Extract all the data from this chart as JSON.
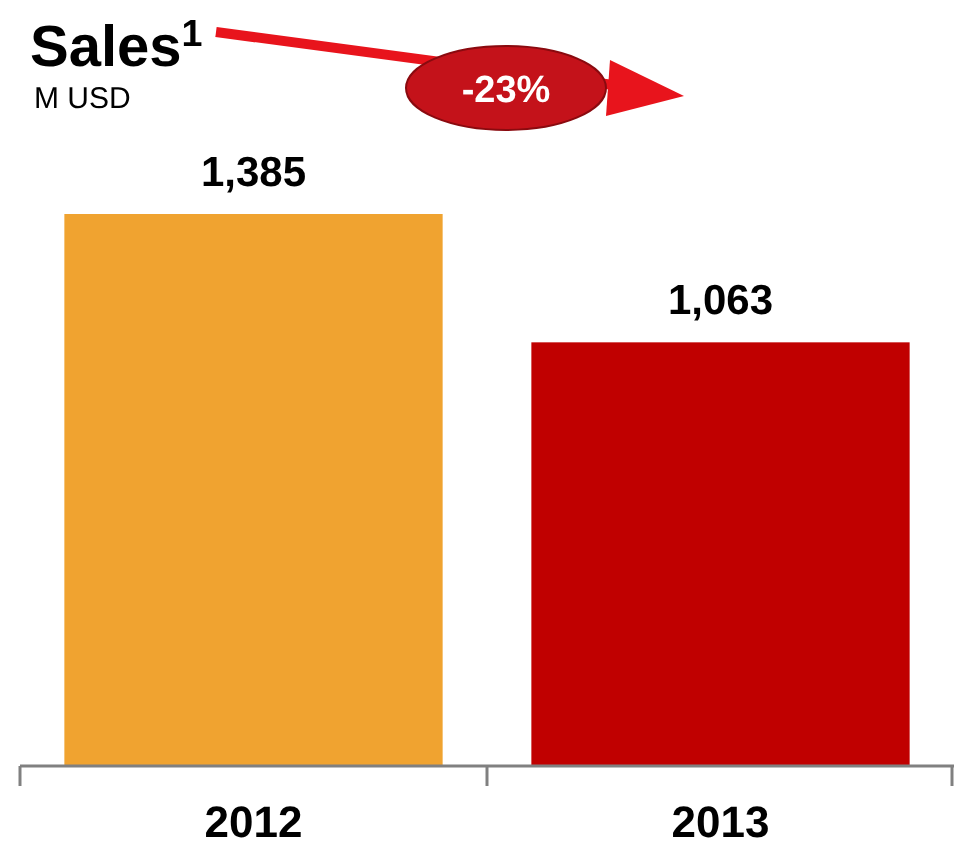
{
  "chart_data": {
    "type": "bar",
    "title": "Sales$^{1}$",
    "subtitle": "M USD",
    "categories": [
      "2012",
      "2013"
    ],
    "values": [
      1385,
      1063
    ],
    "colors": [
      "#f0a330",
      "#c00000"
    ],
    "value_labels": [
      "1,385",
      "1,063"
    ],
    "annotations": [
      "-23%"
    ]
  }
}
